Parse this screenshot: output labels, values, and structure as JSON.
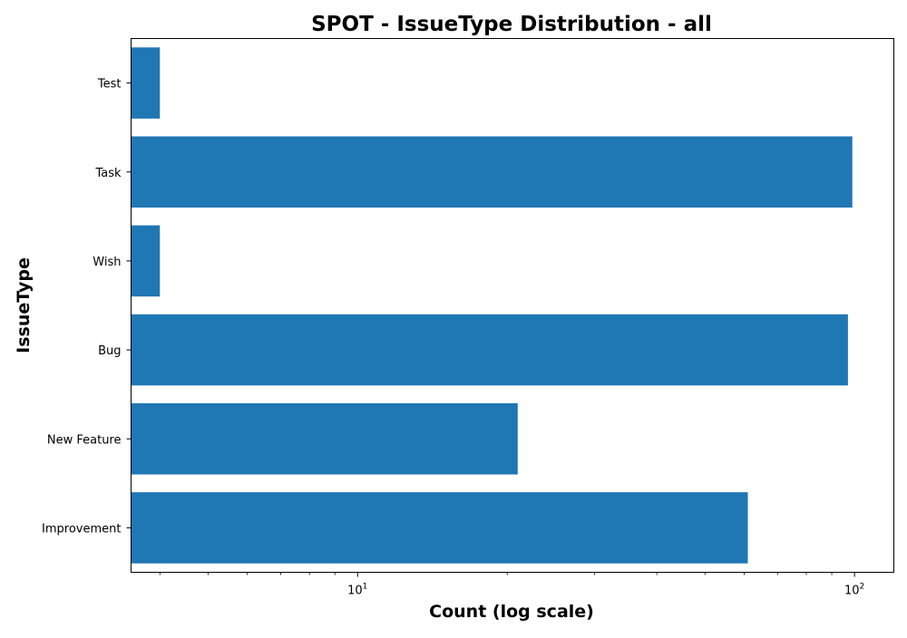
{
  "chart_data": {
    "type": "bar",
    "orientation": "horizontal",
    "title": "SPOT - IssueType Distribution - all",
    "xlabel": "Count (log scale)",
    "ylabel": "IssueType",
    "x_scale": "log",
    "xlim": [
      3.5,
      120
    ],
    "x_ticks": [
      {
        "value": 10,
        "base": "10",
        "exponent": "1"
      },
      {
        "value": 100,
        "base": "10",
        "exponent": "2"
      }
    ],
    "categories": [
      "Improvement",
      "New Feature",
      "Bug",
      "Wish",
      "Task",
      "Test"
    ],
    "values": [
      61,
      21,
      97,
      4,
      99,
      4
    ],
    "bar_color": "#1f77b4",
    "grid": false,
    "legend": "none"
  }
}
